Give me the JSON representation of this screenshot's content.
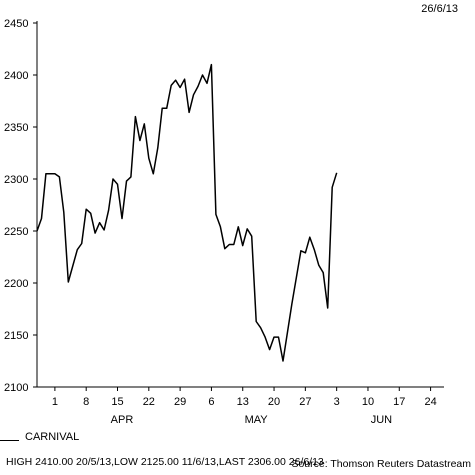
{
  "date_stamp": "26/6/13",
  "legend_label": "CARNIVAL",
  "footer_stats": "HIGH 2410.00 20/5/13,LOW 2125.00 11/6/13,LAST 2306.00 26/6/13",
  "footer_source": "Source: Thomson Reuters Datastream",
  "colors": {
    "line": "#000000",
    "axis": "#000000",
    "background": "#ffffff"
  },
  "chart_data": {
    "type": "line",
    "title": "",
    "xlabel": "",
    "ylabel": "",
    "ylim": [
      2100,
      2450
    ],
    "yticks": [
      2100,
      2150,
      2200,
      2250,
      2300,
      2350,
      2400,
      2450
    ],
    "xlim": [
      "2013-03-28",
      "2013-06-27"
    ],
    "xtick_labels": [
      {
        "date": "2013-04-01",
        "label": "1"
      },
      {
        "date": "2013-04-08",
        "label": "8"
      },
      {
        "date": "2013-04-15",
        "label": "15"
      },
      {
        "date": "2013-04-22",
        "label": "22"
      },
      {
        "date": "2013-04-29",
        "label": "29"
      },
      {
        "date": "2013-05-06",
        "label": "6"
      },
      {
        "date": "2013-05-13",
        "label": "13"
      },
      {
        "date": "2013-05-20",
        "label": "20"
      },
      {
        "date": "2013-05-27",
        "label": "27"
      },
      {
        "date": "2013-06-03",
        "label": "3"
      },
      {
        "date": "2013-06-10",
        "label": "10"
      },
      {
        "date": "2013-06-17",
        "label": "17"
      },
      {
        "date": "2013-06-24",
        "label": "24"
      }
    ],
    "month_labels": [
      {
        "date": "2013-04-16",
        "label": "APR"
      },
      {
        "date": "2013-05-16",
        "label": "MAY"
      },
      {
        "date": "2013-06-13",
        "label": "JUN"
      }
    ],
    "grid": false,
    "series": [
      {
        "name": "CARNIVAL",
        "points": [
          [
            "2013-03-28",
            2250
          ],
          [
            "2013-03-29",
            2262
          ],
          [
            "2013-03-30",
            2305
          ],
          [
            "2013-04-01",
            2305
          ],
          [
            "2013-04-02",
            2302
          ],
          [
            "2013-04-03",
            2268
          ],
          [
            "2013-04-04",
            2201
          ],
          [
            "2013-04-06",
            2232
          ],
          [
            "2013-04-07",
            2238
          ],
          [
            "2013-04-08",
            2271
          ],
          [
            "2013-04-09",
            2267
          ],
          [
            "2013-04-10",
            2248
          ],
          [
            "2013-04-11",
            2258
          ],
          [
            "2013-04-12",
            2251
          ],
          [
            "2013-04-13",
            2270
          ],
          [
            "2013-04-14",
            2300
          ],
          [
            "2013-04-15",
            2295
          ],
          [
            "2013-04-16",
            2262
          ],
          [
            "2013-04-17",
            2298
          ],
          [
            "2013-04-18",
            2302
          ],
          [
            "2013-04-19",
            2360
          ],
          [
            "2013-04-20",
            2337
          ],
          [
            "2013-04-21",
            2353
          ],
          [
            "2013-04-22",
            2320
          ],
          [
            "2013-04-23",
            2305
          ],
          [
            "2013-04-24",
            2330
          ],
          [
            "2013-04-25",
            2368
          ],
          [
            "2013-04-26",
            2368
          ],
          [
            "2013-04-27",
            2390
          ],
          [
            "2013-04-28",
            2395
          ],
          [
            "2013-04-29",
            2388
          ],
          [
            "2013-04-30",
            2396
          ],
          [
            "2013-05-01",
            2364
          ],
          [
            "2013-05-02",
            2381
          ],
          [
            "2013-05-03",
            2389
          ],
          [
            "2013-05-04",
            2400
          ],
          [
            "2013-05-05",
            2392
          ],
          [
            "2013-05-06",
            2410
          ],
          [
            "2013-05-07",
            2266
          ],
          [
            "2013-05-08",
            2254
          ],
          [
            "2013-05-09",
            2233
          ],
          [
            "2013-05-10",
            2237
          ],
          [
            "2013-05-11",
            2237
          ],
          [
            "2013-05-12",
            2254
          ],
          [
            "2013-05-13",
            2236
          ],
          [
            "2013-05-14",
            2252
          ],
          [
            "2013-05-15",
            2245
          ],
          [
            "2013-05-16",
            2163
          ],
          [
            "2013-05-17",
            2157
          ],
          [
            "2013-05-18",
            2148
          ],
          [
            "2013-05-19",
            2136
          ],
          [
            "2013-05-20",
            2148
          ],
          [
            "2013-05-21",
            2148
          ],
          [
            "2013-05-22",
            2125
          ],
          [
            "2013-05-24",
            2180
          ],
          [
            "2013-05-26",
            2231
          ],
          [
            "2013-05-27",
            2229
          ],
          [
            "2013-05-28",
            2244
          ],
          [
            "2013-05-29",
            2232
          ],
          [
            "2013-05-30",
            2217
          ],
          [
            "2013-05-31",
            2210
          ],
          [
            "2013-06-01",
            2176
          ],
          [
            "2013-06-02",
            2292
          ],
          [
            "2013-06-03",
            2306
          ]
        ]
      }
    ]
  }
}
